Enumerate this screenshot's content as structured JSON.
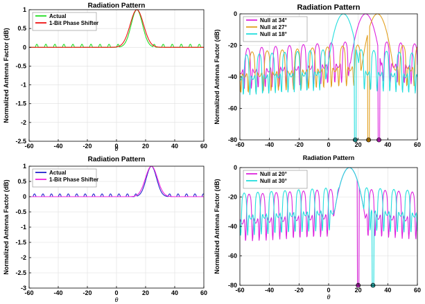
{
  "chart_data": [
    {
      "type": "line",
      "title": "Radiation Pattern",
      "xlabel": "θ",
      "ylabel": "Normalized Antenna Factor (dB)",
      "xlim": [
        -60,
        60
      ],
      "ylim": [
        -2.5,
        1
      ],
      "xticks": [
        -60,
        -40,
        -20,
        0,
        20,
        40,
        60
      ],
      "yticks": [
        -2.5,
        -2,
        -1.5,
        -1,
        -0.5,
        0,
        0.5,
        1
      ],
      "ytick_labels": [
        "-2.5",
        "-2",
        "-1.5",
        "-1",
        "-0.5",
        "0",
        "0.5",
        "1"
      ],
      "grid": true,
      "legend_position": "top-left",
      "main_lobe": 14,
      "series": [
        {
          "name": "Actual",
          "color": "#22dd22",
          "base": -1.0,
          "depth": 1.2,
          "period": 6.2,
          "phase": 0.5,
          "width": 5.5,
          "peak": 1.0
        },
        {
          "name": "1-Bit Phase Shifter",
          "color": "#ee1111",
          "base": -0.6,
          "depth": 0.35,
          "period": 9,
          "phase": 1.2,
          "width": 6.5,
          "peak": 1.0
        }
      ]
    },
    {
      "type": "line",
      "title": "Radiation Pattern",
      "xlabel": "",
      "ylabel": "Normalized Antenna Factor (dB)",
      "xlim": [
        -60,
        60
      ],
      "ylim": [
        -80,
        0
      ],
      "xticks": [
        -60,
        -40,
        -20,
        0,
        20,
        40,
        60
      ],
      "yticks": [
        -80,
        -60,
        -40,
        -20,
        0
      ],
      "ytick_labels": [
        "-80",
        "-60",
        "-40",
        "-20",
        "0"
      ],
      "grid": true,
      "legend_position": "top-left",
      "series": [
        {
          "name": "Null at 34°",
          "color": "#dd22dd",
          "main": 25,
          "null_at": 34,
          "base": -25,
          "depth": 8,
          "period": 4.7,
          "phase": 0.2
        },
        {
          "name": "Null at 27°",
          "color": "#e2a020",
          "main": 33,
          "null_at": 27,
          "base": -27,
          "depth": 8,
          "period": 5.1,
          "phase": 1.1
        },
        {
          "name": "Null at 18°",
          "color": "#22dddd",
          "main": 10,
          "null_at": 18,
          "base": -30,
          "depth": 8,
          "period": 4.3,
          "phase": 2.0
        }
      ],
      "null_markers": [
        {
          "x": 18,
          "color": "#22aaaa"
        },
        {
          "x": 27,
          "color": "#cc8800"
        },
        {
          "x": 34,
          "color": "#cc22cc"
        }
      ]
    },
    {
      "type": "line",
      "title": "Radiation Pattern",
      "xlabel": "θ",
      "ylabel": "Normalized Antenna Factor (dB)",
      "xlim": [
        -60,
        60
      ],
      "ylim": [
        -3,
        1
      ],
      "xticks": [
        -60,
        -40,
        -20,
        0,
        20,
        40,
        60
      ],
      "yticks": [
        -3,
        -2.5,
        -2,
        -1.5,
        -1,
        -0.5,
        0,
        0.5,
        1
      ],
      "ytick_labels": [
        "-3",
        "-2.5",
        "-2",
        "-1.5",
        "-1",
        "-0.5",
        "0",
        "0.5",
        "1"
      ],
      "grid": true,
      "legend_position": "top-left",
      "main_lobe": 24,
      "series": [
        {
          "name": "Actual",
          "color": "#2222cc",
          "base": -0.9,
          "depth": 1.1,
          "period": 5.8,
          "phase": 0.3,
          "width": 5.0,
          "peak": 1.0
        },
        {
          "name": "1-Bit Phase Shifter",
          "color": "#ee22dd",
          "base": -0.7,
          "depth": 0.6,
          "period": 7.5,
          "phase": 0.9,
          "width": 5.8,
          "peak": 1.0
        }
      ]
    },
    {
      "type": "line",
      "title": "Radiation Pattern",
      "xlabel": "θ",
      "ylabel": "Normalized Antenna Factor (dB)",
      "xlim": [
        -60,
        60
      ],
      "ylim": [
        -80,
        0
      ],
      "xticks": [
        -60,
        -40,
        -20,
        0,
        20,
        40,
        60
      ],
      "yticks": [
        -80,
        -60,
        -40,
        -20,
        0
      ],
      "ytick_labels": [
        "-80",
        "-60",
        "-40",
        "-20",
        "0"
      ],
      "grid": true,
      "legend_position": "top-left",
      "series": [
        {
          "name": "Null at 20°",
          "color": "#dd22dd",
          "main": 14,
          "null_at": 20,
          "base": -24,
          "depth": 10,
          "period": 4.6,
          "phase": 0.3
        },
        {
          "name": "Null at 30°",
          "color": "#22dddd",
          "main": 14,
          "null_at": 30,
          "base": -22,
          "depth": 9,
          "period": 4.6,
          "phase": 1.4
        }
      ],
      "null_markers": [
        {
          "x": 20,
          "color": "#cc22cc"
        },
        {
          "x": 30,
          "color": "#22aaaa"
        }
      ]
    }
  ]
}
